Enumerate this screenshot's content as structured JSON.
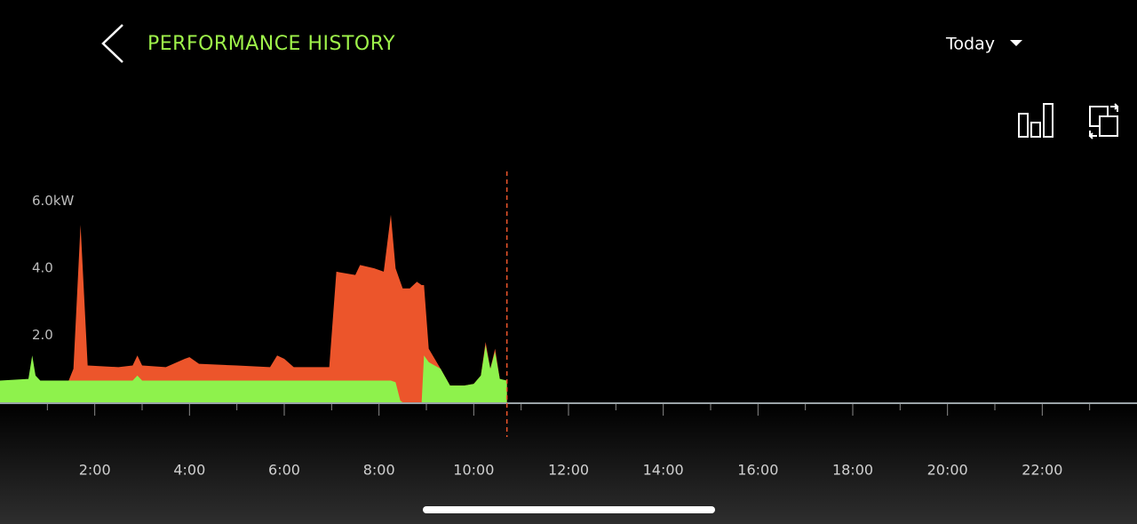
{
  "header": {
    "title": "PERFORMANCE HISTORY",
    "period": "Today"
  },
  "chart_data": {
    "type": "area",
    "x": [
      0,
      0.6,
      0.68,
      0.75,
      0.85,
      1.45,
      1.55,
      1.7,
      1.85,
      2.5,
      2.8,
      2.9,
      3.0,
      3.5,
      3.9,
      4.0,
      4.2,
      5.0,
      5.7,
      5.85,
      6.0,
      6.2,
      6.95,
      7.1,
      7.5,
      7.6,
      7.9,
      8.1,
      8.25,
      8.35,
      8.45,
      8.5,
      8.65,
      8.8,
      8.9,
      8.95,
      9.05,
      9.3,
      9.5,
      9.8,
      10.0,
      10.15,
      10.25,
      10.35,
      10.45,
      10.55,
      10.7
    ],
    "series": [
      {
        "color": "#ec552b",
        "values": [
          0.6,
          0.65,
          0.65,
          0.65,
          0.65,
          0.65,
          1.0,
          5.3,
          1.1,
          1.05,
          1.1,
          1.4,
          1.1,
          1.05,
          1.3,
          1.35,
          1.15,
          1.1,
          1.05,
          1.4,
          1.3,
          1.05,
          1.05,
          3.9,
          3.8,
          4.1,
          4.0,
          3.9,
          5.6,
          4.0,
          3.6,
          3.4,
          3.4,
          3.6,
          3.5,
          3.5,
          1.6,
          1.0,
          0.5,
          0.5,
          0.55,
          0.8,
          1.8,
          1.0,
          1.6,
          0.7,
          0.6
        ]
      },
      {
        "color": "#8ef24c",
        "values": [
          0.65,
          0.7,
          1.4,
          0.8,
          0.65,
          0.65,
          0.65,
          0.65,
          0.65,
          0.65,
          0.65,
          0.8,
          0.65,
          0.65,
          0.65,
          0.65,
          0.65,
          0.65,
          0.65,
          0.65,
          0.65,
          0.65,
          0.65,
          0.65,
          0.65,
          0.65,
          0.65,
          0.65,
          0.65,
          0.6,
          0.05,
          0,
          0,
          0,
          0,
          1.4,
          1.2,
          1.0,
          0.5,
          0.5,
          0.55,
          0.8,
          1.7,
          1.0,
          1.5,
          0.7,
          0.65
        ]
      }
    ],
    "xlim": [
      0,
      24
    ],
    "xticks": [
      {
        "value": 2,
        "label": "2:00"
      },
      {
        "value": 4,
        "label": "4:00"
      },
      {
        "value": 6,
        "label": "6:00"
      },
      {
        "value": 8,
        "label": "8:00"
      },
      {
        "value": 10,
        "label": "10:00"
      },
      {
        "value": 12,
        "label": "12:00"
      },
      {
        "value": 14,
        "label": "14:00"
      },
      {
        "value": 16,
        "label": "16:00"
      },
      {
        "value": 18,
        "label": "18:00"
      },
      {
        "value": 20,
        "label": "20:00"
      },
      {
        "value": 22,
        "label": "22:00"
      }
    ],
    "minor_xticks": [
      1,
      3,
      5,
      7,
      9,
      11,
      13,
      15,
      17,
      19,
      21,
      23
    ],
    "ylim": [
      0,
      7
    ],
    "yticks": [
      {
        "value": 2,
        "label": "2.0"
      },
      {
        "value": 4,
        "label": "4.0"
      },
      {
        "value": 6,
        "label": "6.0kW"
      }
    ],
    "now": 10.7
  }
}
